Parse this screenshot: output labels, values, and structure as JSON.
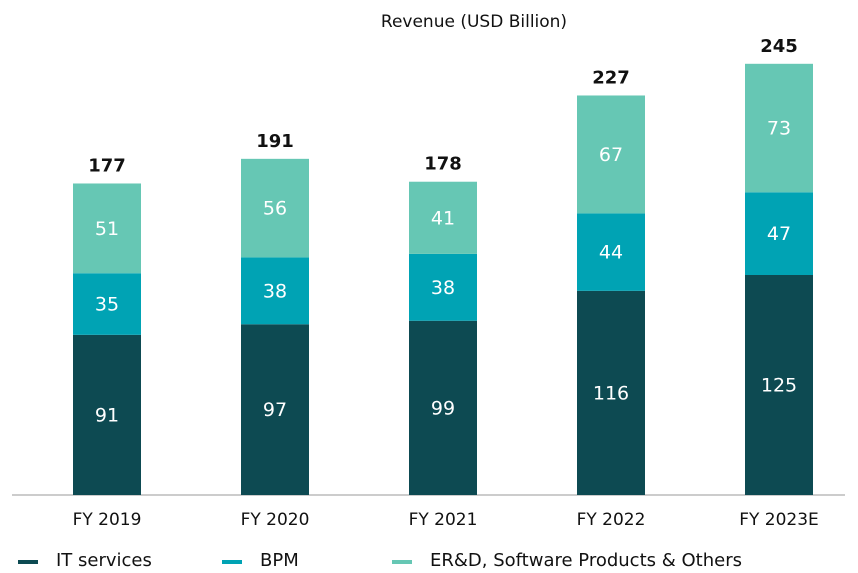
{
  "chart_data": {
    "type": "stacked_bar",
    "title": "Revenue (USD Billion)",
    "categories": [
      "FY 2019",
      "FY 2020",
      "FY 2021",
      "FY 2022",
      "FY 2023E"
    ],
    "series": [
      {
        "name": "IT services",
        "color": "#0d4a52",
        "values": [
          91,
          97,
          99,
          116,
          125
        ]
      },
      {
        "name": "BPM",
        "color": "#00a3b4",
        "values": [
          35,
          38,
          38,
          44,
          47
        ]
      },
      {
        "name": "ER&D, Software Products & Others",
        "color": "#66c7b4",
        "values": [
          51,
          56,
          41,
          67,
          73
        ]
      }
    ],
    "totals": [
      177,
      191,
      178,
      227,
      245
    ],
    "ylim": [
      0,
      250
    ]
  }
}
